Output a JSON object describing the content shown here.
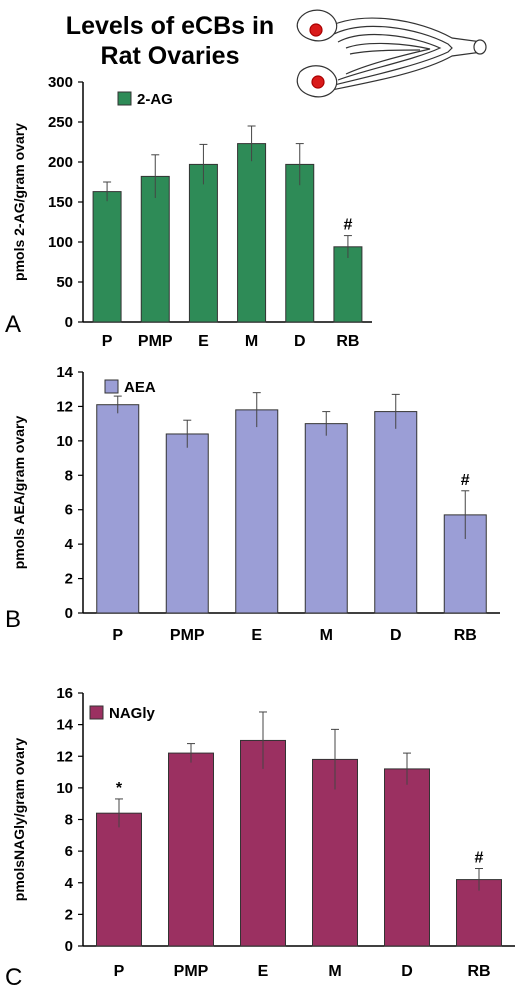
{
  "figure": {
    "title_line1": "Levels of eCBs in",
    "title_line2": "Rat Ovaries",
    "illustration": "uterus-ovaries-icon"
  },
  "chart_data": [
    {
      "type": "bar",
      "panel_label": "A",
      "categories": [
        "P",
        "PMP",
        "E",
        "M",
        "D",
        "RB"
      ],
      "series": [
        {
          "name": "2-AG",
          "values": [
            163,
            182,
            197,
            223,
            197,
            94
          ],
          "errors": [
            12,
            27,
            25,
            22,
            26,
            14
          ],
          "color": "#2e8b57"
        }
      ],
      "ylabel": "pmols 2-AG/gram ovary",
      "ylim": [
        0,
        300
      ],
      "yticks": [
        0,
        50,
        100,
        150,
        200,
        250,
        300
      ],
      "annotations": [
        {
          "category": "RB",
          "text": "#"
        }
      ]
    },
    {
      "type": "bar",
      "panel_label": "B",
      "categories": [
        "P",
        "PMP",
        "E",
        "M",
        "D",
        "RB"
      ],
      "series": [
        {
          "name": "AEA",
          "values": [
            12.1,
            10.4,
            11.8,
            11.0,
            11.7,
            5.7
          ],
          "errors": [
            0.5,
            0.8,
            1.0,
            0.7,
            1.0,
            1.4
          ],
          "color": "#9b9ed6"
        }
      ],
      "ylabel": "pmols AEA/gram ovary",
      "ylim": [
        0,
        14
      ],
      "yticks": [
        0,
        2,
        4,
        6,
        8,
        10,
        12,
        14
      ],
      "annotations": [
        {
          "category": "RB",
          "text": "#"
        }
      ]
    },
    {
      "type": "bar",
      "panel_label": "C",
      "categories": [
        "P",
        "PMP",
        "E",
        "M",
        "D",
        "RB"
      ],
      "series": [
        {
          "name": "NAGly",
          "values": [
            8.4,
            12.2,
            13.0,
            11.8,
            11.2,
            4.2
          ],
          "errors": [
            0.9,
            0.6,
            1.8,
            1.9,
            1.0,
            0.7
          ],
          "color": "#9b3061"
        }
      ],
      "ylabel": "pmolsNAGly/gram ovary",
      "ylim": [
        0,
        16
      ],
      "yticks": [
        0,
        2,
        4,
        6,
        8,
        10,
        12,
        14,
        16
      ],
      "annotations": [
        {
          "category": "P",
          "text": "*"
        },
        {
          "category": "RB",
          "text": "#"
        }
      ]
    }
  ]
}
